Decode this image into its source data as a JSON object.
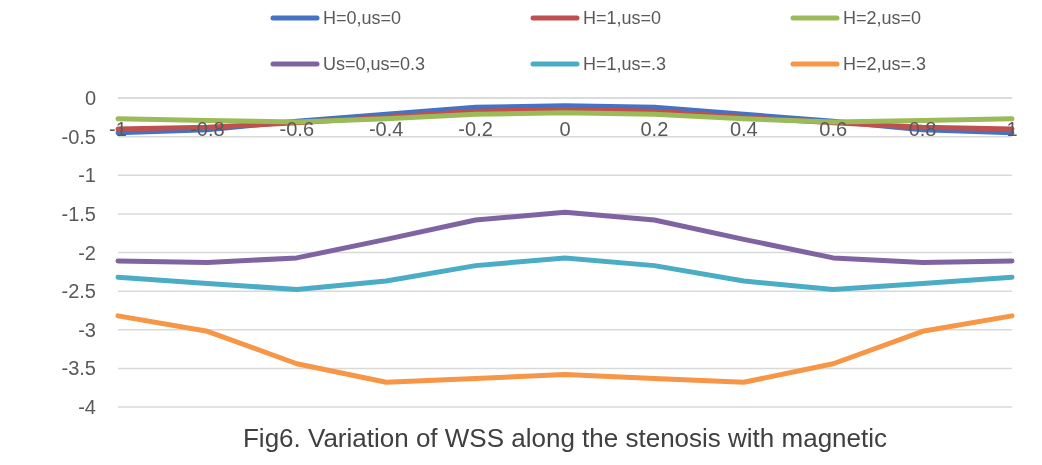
{
  "chart_data": {
    "type": "line",
    "title": "Fig6. Variation of WSS along the stenosis with magnetic",
    "x": [
      -1,
      -0.8,
      -0.6,
      -0.4,
      -0.2,
      0,
      0.2,
      0.4,
      0.6,
      0.8,
      1
    ],
    "xlim": [
      -1,
      1
    ],
    "xticks": [
      -1,
      -0.8,
      -0.6,
      -0.4,
      -0.2,
      0,
      0.2,
      0.4,
      0.6,
      0.8,
      1
    ],
    "ylim": [
      -4,
      0
    ],
    "yticks": [
      0,
      -0.5,
      -1,
      -1.5,
      -2,
      -2.5,
      -3,
      -3.5,
      -4
    ],
    "grid": "y",
    "legend": "top",
    "marker": "none",
    "line_style": "solid",
    "series": [
      {
        "name": "H=0,us=0",
        "color": "#4472c4",
        "values": [
          -0.45,
          -0.41,
          -0.3,
          -0.21,
          -0.12,
          -0.1,
          -0.12,
          -0.21,
          -0.3,
          -0.41,
          -0.45
        ]
      },
      {
        "name": "H=1,us=0",
        "color": "#c0504d",
        "values": [
          -0.4,
          -0.38,
          -0.32,
          -0.25,
          -0.17,
          -0.15,
          -0.17,
          -0.25,
          -0.32,
          -0.38,
          -0.4
        ]
      },
      {
        "name": "H=2,us=0",
        "color": "#9bbb59",
        "values": [
          -0.27,
          -0.29,
          -0.31,
          -0.27,
          -0.21,
          -0.19,
          -0.21,
          -0.27,
          -0.31,
          -0.29,
          -0.27
        ]
      },
      {
        "name": "Us=0,us=0.3",
        "color": "#8064a2",
        "values": [
          -2.11,
          -2.13,
          -2.07,
          -1.83,
          -1.58,
          -1.48,
          -1.58,
          -1.83,
          -2.07,
          -2.13,
          -2.11
        ]
      },
      {
        "name": "H=1,us=.3",
        "color": "#4bacc6",
        "values": [
          -2.32,
          -2.4,
          -2.48,
          -2.37,
          -2.17,
          -2.07,
          -2.17,
          -2.37,
          -2.48,
          -2.4,
          -2.32
        ]
      },
      {
        "name": "H=2,us=.3",
        "color": "#f79646",
        "values": [
          -2.82,
          -3.02,
          -3.44,
          -3.68,
          -3.63,
          -3.58,
          -3.63,
          -3.68,
          -3.44,
          -3.02,
          -2.82
        ]
      }
    ]
  }
}
